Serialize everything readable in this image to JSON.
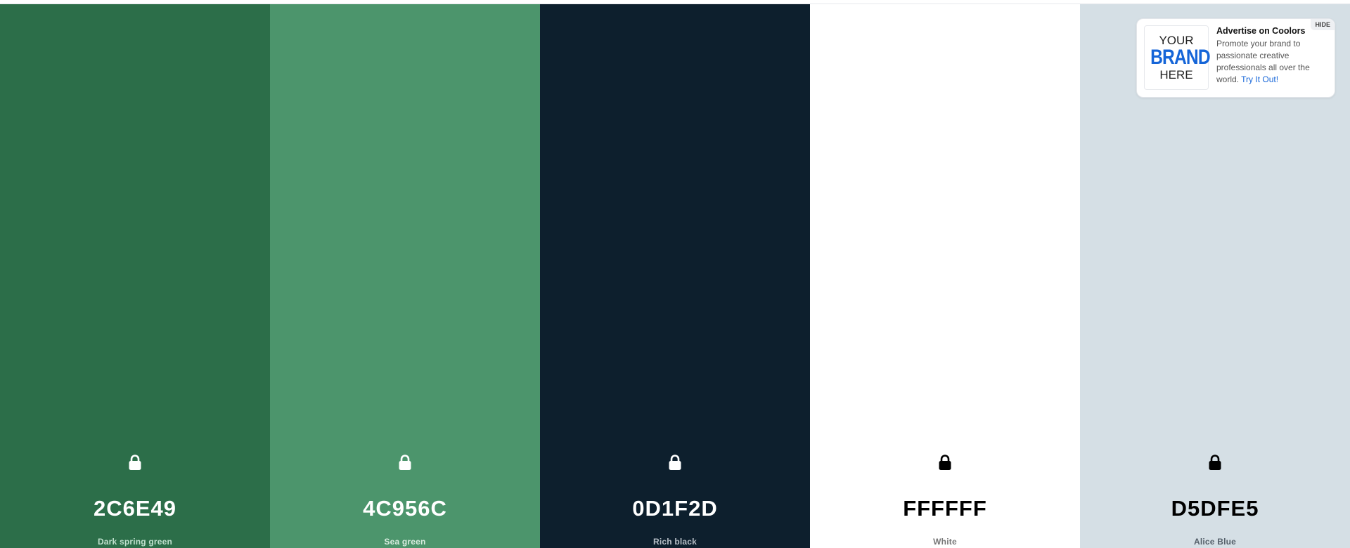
{
  "palette": [
    {
      "hex": "2C6E49",
      "name": "Dark spring green",
      "bg": "#2C6E49",
      "fg": "#ffffff",
      "sub": "#bfe0cd"
    },
    {
      "hex": "4C956C",
      "name": "Sea green",
      "bg": "#4C956C",
      "fg": "#ffffff",
      "sub": "#d8ecdf"
    },
    {
      "hex": "0D1F2D",
      "name": "Rich black",
      "bg": "#0D1F2D",
      "fg": "#ffffff",
      "sub": "#b6bec6"
    },
    {
      "hex": "FFFFFF",
      "name": "White",
      "bg": "#FFFFFF",
      "fg": "#000000",
      "sub": "#777777"
    },
    {
      "hex": "D5DFE5",
      "name": "Alice Blue",
      "bg": "#D5DFE5",
      "fg": "#000000",
      "sub": "#55606a"
    }
  ],
  "lock_icon": "lock-icon",
  "ad": {
    "hide_label": "HIDE",
    "logo": {
      "line1": "YOUR",
      "line2": "BRAND",
      "line3": "HERE"
    },
    "title": "Advertise on Coolors",
    "body": "Promote your brand to passionate creative professionals all over the world.",
    "link": "Try It Out!"
  }
}
